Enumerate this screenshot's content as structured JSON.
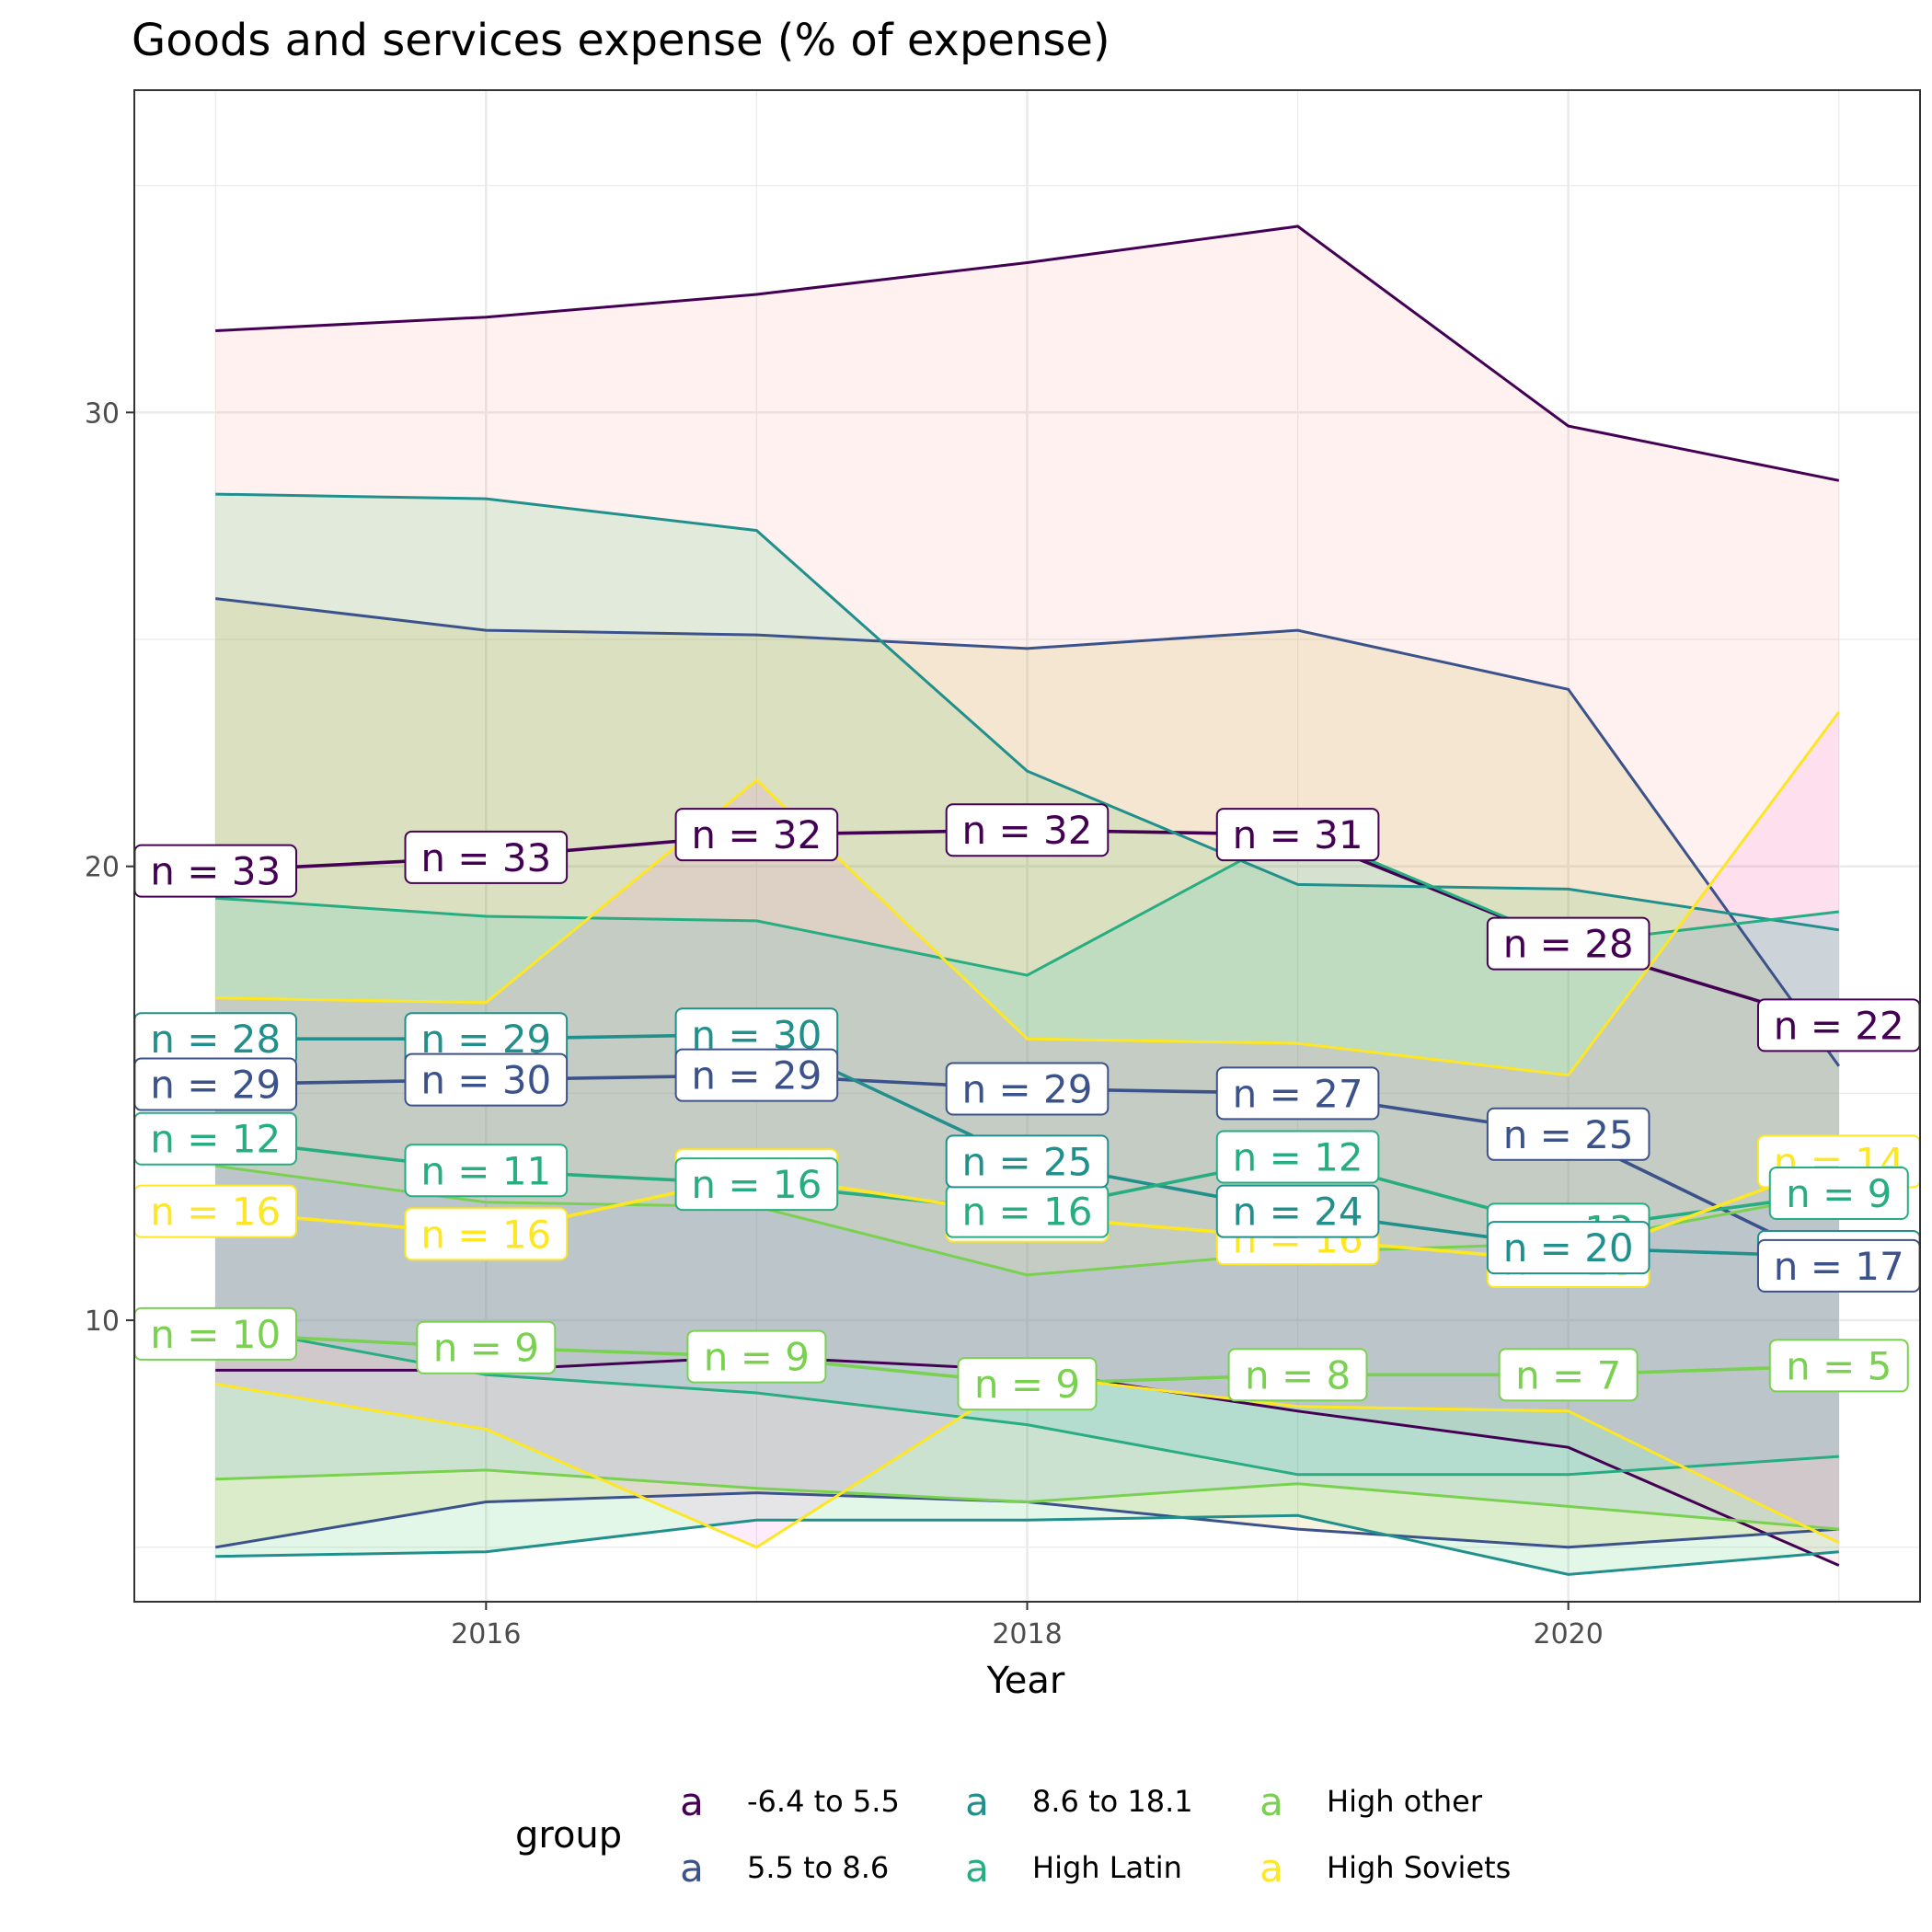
{
  "chart_data": {
    "type": "line",
    "title": "Goods and services expense (% of expense)",
    "xlabel": "Year",
    "ylabel": "",
    "xlim": [
      2014.7,
      2021.3
    ],
    "ylim": [
      3.8,
      37.1
    ],
    "x_ticks": [
      2016,
      2018,
      2020
    ],
    "y_ticks": [
      10,
      20,
      30
    ],
    "x_tick_labels": [
      "2016",
      "2018",
      "2020"
    ],
    "y_tick_labels": [
      "10",
      "20",
      "30"
    ],
    "grid": true,
    "legend_placement": "bottom",
    "legend_title": "group",
    "legend_key_glyph": "a",
    "x": [
      2015,
      2016,
      2017,
      2018,
      2019,
      2020,
      2021
    ],
    "series": [
      {
        "name": "-6.4 to 5.5",
        "color": "#440154",
        "upper": [
          31.8,
          32.1,
          32.6,
          33.3,
          34.1,
          29.7,
          28.5
        ],
        "median": [
          19.9,
          20.2,
          20.7,
          20.8,
          20.7,
          18.3,
          16.5
        ],
        "lower": [
          8.9,
          8.9,
          9.2,
          8.9,
          8.0,
          7.2,
          4.6
        ],
        "n": [
          33,
          33,
          32,
          32,
          31,
          28,
          22
        ]
      },
      {
        "name": "5.5 to 8.6",
        "color": "#3B528B",
        "upper": [
          25.9,
          25.2,
          25.1,
          24.8,
          25.2,
          23.9,
          15.6
        ],
        "median": [
          15.2,
          15.3,
          15.4,
          15.1,
          15.0,
          14.1,
          11.2
        ],
        "lower": [
          5.0,
          6.0,
          6.2,
          6.0,
          5.4,
          5.0,
          5.4
        ],
        "n": [
          29,
          30,
          29,
          29,
          27,
          25,
          17
        ]
      },
      {
        "name": "8.6 to 18.1",
        "color": "#21908C",
        "upper": [
          28.2,
          28.1,
          27.4,
          22.1,
          19.6,
          19.5,
          18.6
        ],
        "lower": [
          4.8,
          4.9,
          5.6,
          5.6,
          5.7,
          4.4,
          4.9
        ],
        "median": [
          16.2,
          16.2,
          16.3,
          13.5,
          12.4,
          11.6,
          11.4
        ],
        "n": [
          28,
          29,
          30,
          25,
          24,
          20,
          20
        ]
      },
      {
        "name": "High Latin",
        "color": "#27AD81",
        "upper": [
          19.3,
          18.9,
          18.8,
          17.6,
          20.8,
          18.3,
          19.0
        ],
        "median": [
          14.0,
          13.3,
          13.0,
          12.4,
          13.6,
          12.0,
          12.8
        ],
        "lower": [
          9.9,
          8.8,
          8.4,
          7.7,
          6.6,
          6.6,
          7.0
        ],
        "n": [
          12,
          11,
          16,
          16,
          12,
          13,
          9
        ]
      },
      {
        "name": "High other",
        "color": "#7AD151",
        "upper": [
          13.4,
          12.6,
          12.5,
          11.0,
          11.5,
          11.7,
          12.8
        ],
        "median": [
          9.7,
          9.4,
          9.2,
          8.6,
          8.8,
          8.8,
          9.0
        ],
        "lower": [
          6.5,
          6.7,
          6.3,
          6.0,
          6.4,
          5.9,
          5.4
        ],
        "n": [
          10,
          9,
          9,
          9,
          8,
          7,
          5
        ]
      },
      {
        "name": "High Soviets",
        "color": "#FDE725",
        "upper": [
          17.1,
          17.0,
          21.9,
          16.2,
          16.1,
          15.4,
          23.4
        ],
        "median": [
          12.4,
          11.9,
          13.2,
          12.3,
          11.8,
          11.3,
          13.5
        ],
        "lower": [
          8.6,
          7.6,
          5.0,
          8.8,
          8.1,
          8.0,
          5.1
        ],
        "n": [
          16,
          16,
          16,
          16,
          16,
          16,
          14
        ]
      }
    ],
    "label_prefix": "n = ",
    "legend_rows": [
      [
        "-6.4 to 5.5",
        "8.6 to 18.1",
        "High other"
      ],
      [
        "5.5 to 8.6",
        "High Latin",
        "High Soviets"
      ]
    ]
  }
}
